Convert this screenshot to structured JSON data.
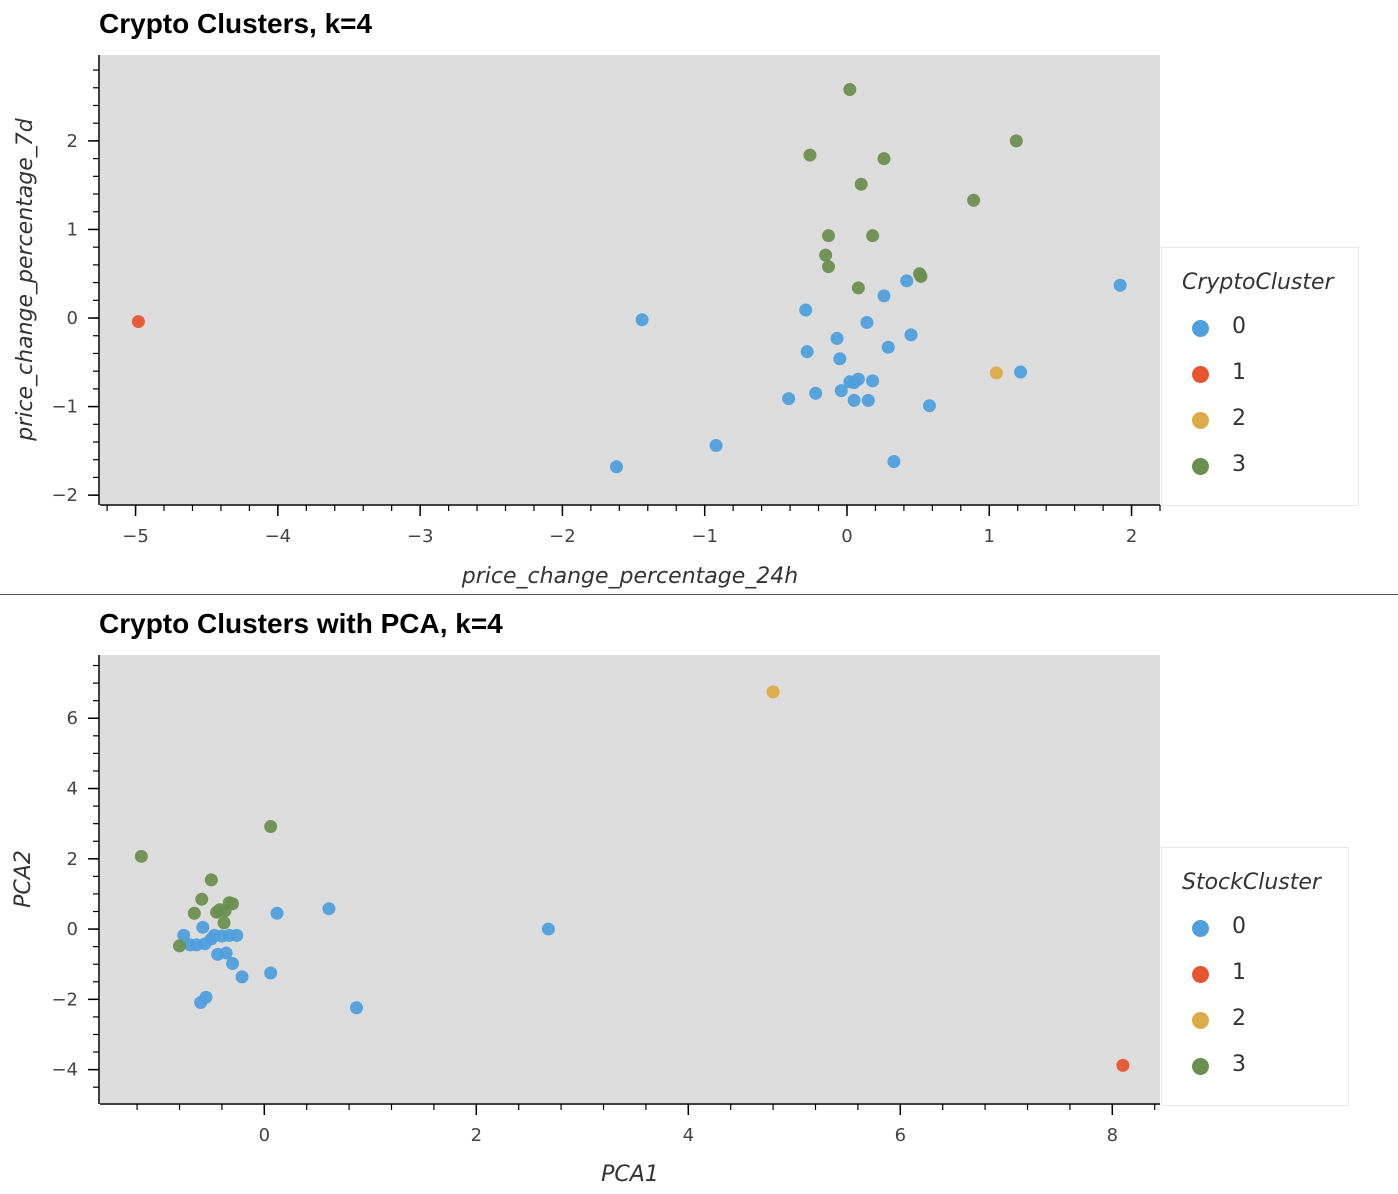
{
  "colors": {
    "cluster_0": "#4f9fdc",
    "cluster_1": "#e5552f",
    "cluster_2": "#dcab45",
    "cluster_3": "#6b8f4f",
    "plot_bg": "#dddddd"
  },
  "chart_data": [
    {
      "type": "scatter",
      "title": "Crypto Clusters, k=4",
      "xlabel": "price_change_percentage_24h",
      "ylabel": "price_change_percentage_7d",
      "xlim": [
        -5.25,
        2.2
      ],
      "ylim": [
        -2.1,
        2.97
      ],
      "xticks": [
        -5,
        -4,
        -3,
        -2,
        -1,
        0,
        1,
        2
      ],
      "yticks": [
        -2,
        -1,
        0,
        1,
        2
      ],
      "grid": false,
      "legend": {
        "title": "CryptoCluster",
        "position": "right",
        "entries": [
          "0",
          "1",
          "2",
          "3"
        ]
      },
      "series": [
        {
          "name": "0",
          "points": [
            [
              -1.44,
              -0.02
            ],
            [
              -1.62,
              -1.68
            ],
            [
              -0.92,
              -1.44
            ],
            [
              -0.29,
              0.09
            ],
            [
              -0.28,
              -0.38
            ],
            [
              -0.41,
              -0.91
            ],
            [
              -0.22,
              -0.85
            ],
            [
              -0.07,
              -0.23
            ],
            [
              -0.05,
              -0.46
            ],
            [
              -0.04,
              -0.82
            ],
            [
              0.02,
              -0.72
            ],
            [
              0.05,
              -0.73
            ],
            [
              0.08,
              -0.69
            ],
            [
              0.05,
              -0.93
            ],
            [
              0.14,
              -0.05
            ],
            [
              0.15,
              -0.93
            ],
            [
              0.18,
              -0.71
            ],
            [
              0.26,
              0.25
            ],
            [
              0.29,
              -0.33
            ],
            [
              0.33,
              -1.62
            ],
            [
              0.42,
              0.42
            ],
            [
              0.45,
              -0.19
            ],
            [
              0.58,
              -0.99
            ],
            [
              1.22,
              -0.61
            ],
            [
              1.92,
              0.37
            ]
          ]
        },
        {
          "name": "1",
          "points": [
            [
              -4.98,
              -0.04
            ]
          ]
        },
        {
          "name": "2",
          "points": [
            [
              1.05,
              -0.62
            ]
          ]
        },
        {
          "name": "3",
          "points": [
            [
              0.02,
              2.58
            ],
            [
              -0.26,
              1.84
            ],
            [
              0.26,
              1.8
            ],
            [
              0.1,
              1.51
            ],
            [
              1.19,
              2.0
            ],
            [
              0.89,
              1.33
            ],
            [
              -0.13,
              0.93
            ],
            [
              0.18,
              0.93
            ],
            [
              -0.15,
              0.71
            ],
            [
              -0.13,
              0.58
            ],
            [
              0.08,
              0.34
            ],
            [
              0.51,
              0.5
            ],
            [
              0.52,
              0.47
            ]
          ]
        }
      ]
    },
    {
      "type": "scatter",
      "title": "Crypto Clusters with PCA, k=4",
      "xlabel": "PCA1",
      "ylabel": "PCA2",
      "xlim": [
        -1.55,
        8.45
      ],
      "ylim": [
        -4.95,
        7.8
      ],
      "xticks": [
        0,
        2,
        4,
        6,
        8
      ],
      "yticks": [
        -4,
        -2,
        0,
        2,
        4,
        6
      ],
      "grid": false,
      "legend": {
        "title": "StockCluster",
        "position": "right",
        "entries": [
          "0",
          "1",
          "2",
          "3"
        ]
      },
      "series": [
        {
          "name": "0",
          "points": [
            [
              -0.76,
              -0.18
            ],
            [
              -0.7,
              -0.45
            ],
            [
              -0.64,
              -0.45
            ],
            [
              -0.58,
              0.05
            ],
            [
              -0.56,
              -0.42
            ],
            [
              -0.5,
              -0.28
            ],
            [
              -0.47,
              -0.18
            ],
            [
              -0.44,
              -0.72
            ],
            [
              -0.4,
              -0.2
            ],
            [
              -0.36,
              -0.68
            ],
            [
              -0.33,
              -0.18
            ],
            [
              -0.3,
              -0.98
            ],
            [
              -0.26,
              -0.18
            ],
            [
              -0.21,
              -1.36
            ],
            [
              -0.6,
              -2.09
            ],
            [
              -0.55,
              -1.94
            ],
            [
              0.06,
              -1.25
            ],
            [
              0.12,
              0.45
            ],
            [
              0.61,
              0.58
            ],
            [
              0.87,
              -2.24
            ],
            [
              2.68,
              0.0
            ]
          ]
        },
        {
          "name": "1",
          "points": [
            [
              8.1,
              -3.88
            ]
          ]
        },
        {
          "name": "2",
          "points": [
            [
              4.8,
              6.75
            ]
          ]
        },
        {
          "name": "3",
          "points": [
            [
              -1.16,
              2.07
            ],
            [
              -0.5,
              1.4
            ],
            [
              0.06,
              2.92
            ],
            [
              -0.8,
              -0.48
            ],
            [
              -0.66,
              0.45
            ],
            [
              -0.59,
              0.85
            ],
            [
              -0.45,
              0.48
            ],
            [
              -0.42,
              0.55
            ],
            [
              -0.37,
              0.52
            ],
            [
              -0.38,
              0.18
            ],
            [
              -0.33,
              0.75
            ],
            [
              -0.3,
              0.72
            ]
          ]
        }
      ]
    }
  ]
}
